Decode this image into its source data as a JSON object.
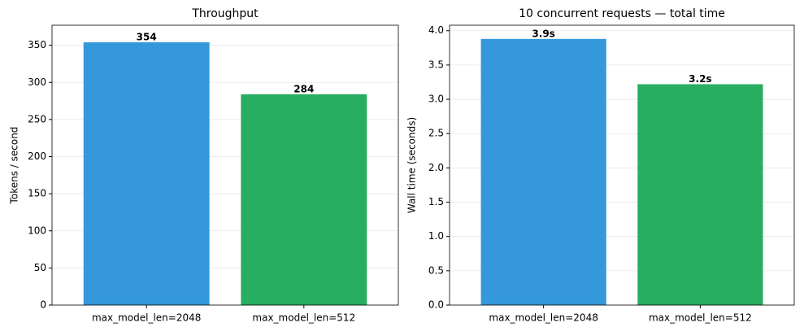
{
  "chart_data": [
    {
      "type": "bar",
      "title": "Throughput",
      "y_label": "Tokens / second",
      "categories": [
        "max_model_len=2048",
        "max_model_len=512"
      ],
      "values": [
        354,
        284
      ],
      "colors": [
        "#3498db",
        "#27ae60"
      ],
      "ylim": [
        0,
        377
      ],
      "yticks": [
        0,
        50,
        100,
        150,
        200,
        250,
        300,
        350
      ],
      "grid": true
    },
    {
      "type": "bar",
      "title": "10 concurrent requests — total time",
      "y_label": "Wall time (seconds)",
      "categories": [
        "max_model_len=2048",
        "max_model_len=512"
      ],
      "values": [
        3.88,
        3.22
      ],
      "value_labels": [
        "3.9s",
        "3.2s"
      ],
      "colors": [
        "#3498db",
        "#27ae60"
      ],
      "ylim": [
        0,
        4.08
      ],
      "yticks": [
        {
          "value": 0,
          "label": "0.0"
        },
        0.5,
        {
          "value": 1,
          "label": "1.0"
        },
        1.5,
        {
          "value": 2,
          "label": "2.0"
        },
        2.5,
        {
          "value": 3,
          "label": "3.0"
        },
        3.5,
        {
          "value": 4,
          "label": "4.0"
        }
      ],
      "grid": true
    }
  ]
}
